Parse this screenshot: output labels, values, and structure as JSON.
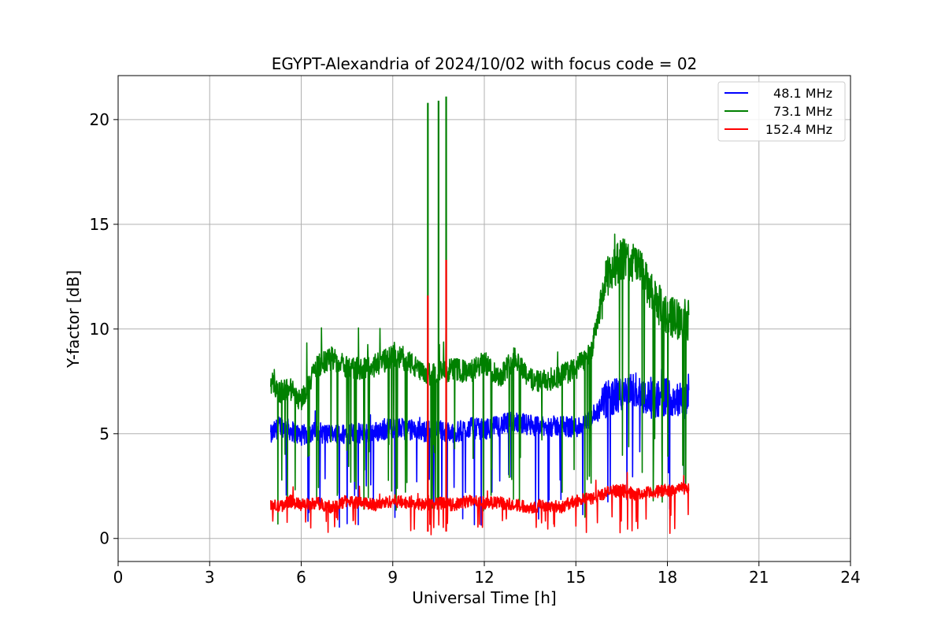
{
  "chart_data": {
    "type": "line",
    "title": "EGYPT-Alexandria of 2024/10/02 with focus code = 02",
    "xlabel": "Universal Time [h]",
    "ylabel": "Y-factor [dB]",
    "xlim": [
      0,
      24
    ],
    "ylim": [
      -1.1,
      22.1
    ],
    "xticks": [
      0,
      3,
      6,
      9,
      12,
      15,
      18,
      21,
      24
    ],
    "yticks": [
      0,
      5,
      10,
      15,
      20
    ],
    "grid": true,
    "legend_position": "top-right",
    "series": [
      {
        "name": "48.1 MHz",
        "color": "#0000ff",
        "x": [
          5.0,
          5.3,
          5.6,
          6.0,
          6.5,
          7.0,
          7.5,
          8.0,
          8.5,
          9.0,
          9.5,
          10.0,
          10.5,
          11.0,
          11.5,
          12.0,
          12.5,
          13.0,
          13.5,
          14.0,
          14.5,
          15.0,
          15.5,
          16.0,
          16.5,
          17.0,
          17.5,
          18.0,
          18.7
        ],
        "y": [
          4.9,
          5.4,
          5.2,
          4.9,
          5.1,
          4.9,
          5.0,
          5.0,
          5.1,
          5.3,
          5.2,
          5.1,
          5.2,
          5.0,
          5.3,
          5.2,
          5.4,
          5.6,
          5.4,
          5.3,
          5.4,
          5.3,
          5.6,
          6.6,
          6.9,
          7.1,
          6.6,
          6.8,
          6.5
        ]
      },
      {
        "name": "73.1 MHz",
        "color": "#008000",
        "x": [
          5.0,
          5.3,
          5.6,
          6.0,
          6.5,
          7.0,
          7.5,
          8.0,
          8.5,
          9.0,
          9.5,
          10.0,
          10.5,
          11.0,
          11.5,
          12.0,
          12.5,
          13.0,
          13.5,
          14.0,
          14.5,
          15.0,
          15.5,
          16.0,
          16.5,
          17.0,
          17.5,
          18.0,
          18.7
        ],
        "y": [
          7.5,
          7.0,
          7.2,
          6.6,
          8.2,
          8.6,
          8.2,
          8.1,
          8.3,
          8.7,
          8.5,
          7.8,
          7.9,
          8.1,
          7.9,
          8.4,
          7.7,
          8.7,
          7.6,
          7.5,
          7.8,
          8.1,
          8.9,
          12.4,
          13.4,
          13.1,
          11.6,
          10.6,
          10.4
        ]
      },
      {
        "name": "152.4 MHz",
        "color": "#ff0000",
        "x": [
          5.0,
          5.3,
          5.6,
          6.0,
          6.5,
          7.0,
          7.5,
          8.0,
          8.5,
          9.0,
          9.5,
          10.0,
          10.5,
          11.0,
          11.5,
          12.0,
          12.5,
          13.0,
          13.5,
          14.0,
          14.5,
          15.0,
          15.5,
          16.0,
          16.5,
          17.0,
          17.5,
          18.0,
          18.7
        ],
        "y": [
          1.6,
          1.5,
          1.8,
          1.6,
          1.7,
          1.5,
          1.8,
          1.7,
          1.6,
          1.8,
          1.7,
          1.6,
          1.7,
          1.6,
          1.8,
          1.7,
          1.7,
          1.6,
          1.5,
          1.6,
          1.5,
          1.8,
          1.9,
          2.2,
          2.3,
          2.1,
          2.2,
          2.3,
          2.4
        ]
      }
    ],
    "annotations": [
      {
        "series": "73.1 MHz",
        "note": "spikes",
        "x": [
          10.15,
          10.5,
          10.75
        ],
        "y": [
          20.8,
          20.9,
          21.1
        ]
      },
      {
        "series": "152.4 MHz",
        "note": "spikes",
        "x": [
          10.15,
          10.75
        ],
        "y": [
          11.6,
          13.3
        ]
      }
    ]
  }
}
